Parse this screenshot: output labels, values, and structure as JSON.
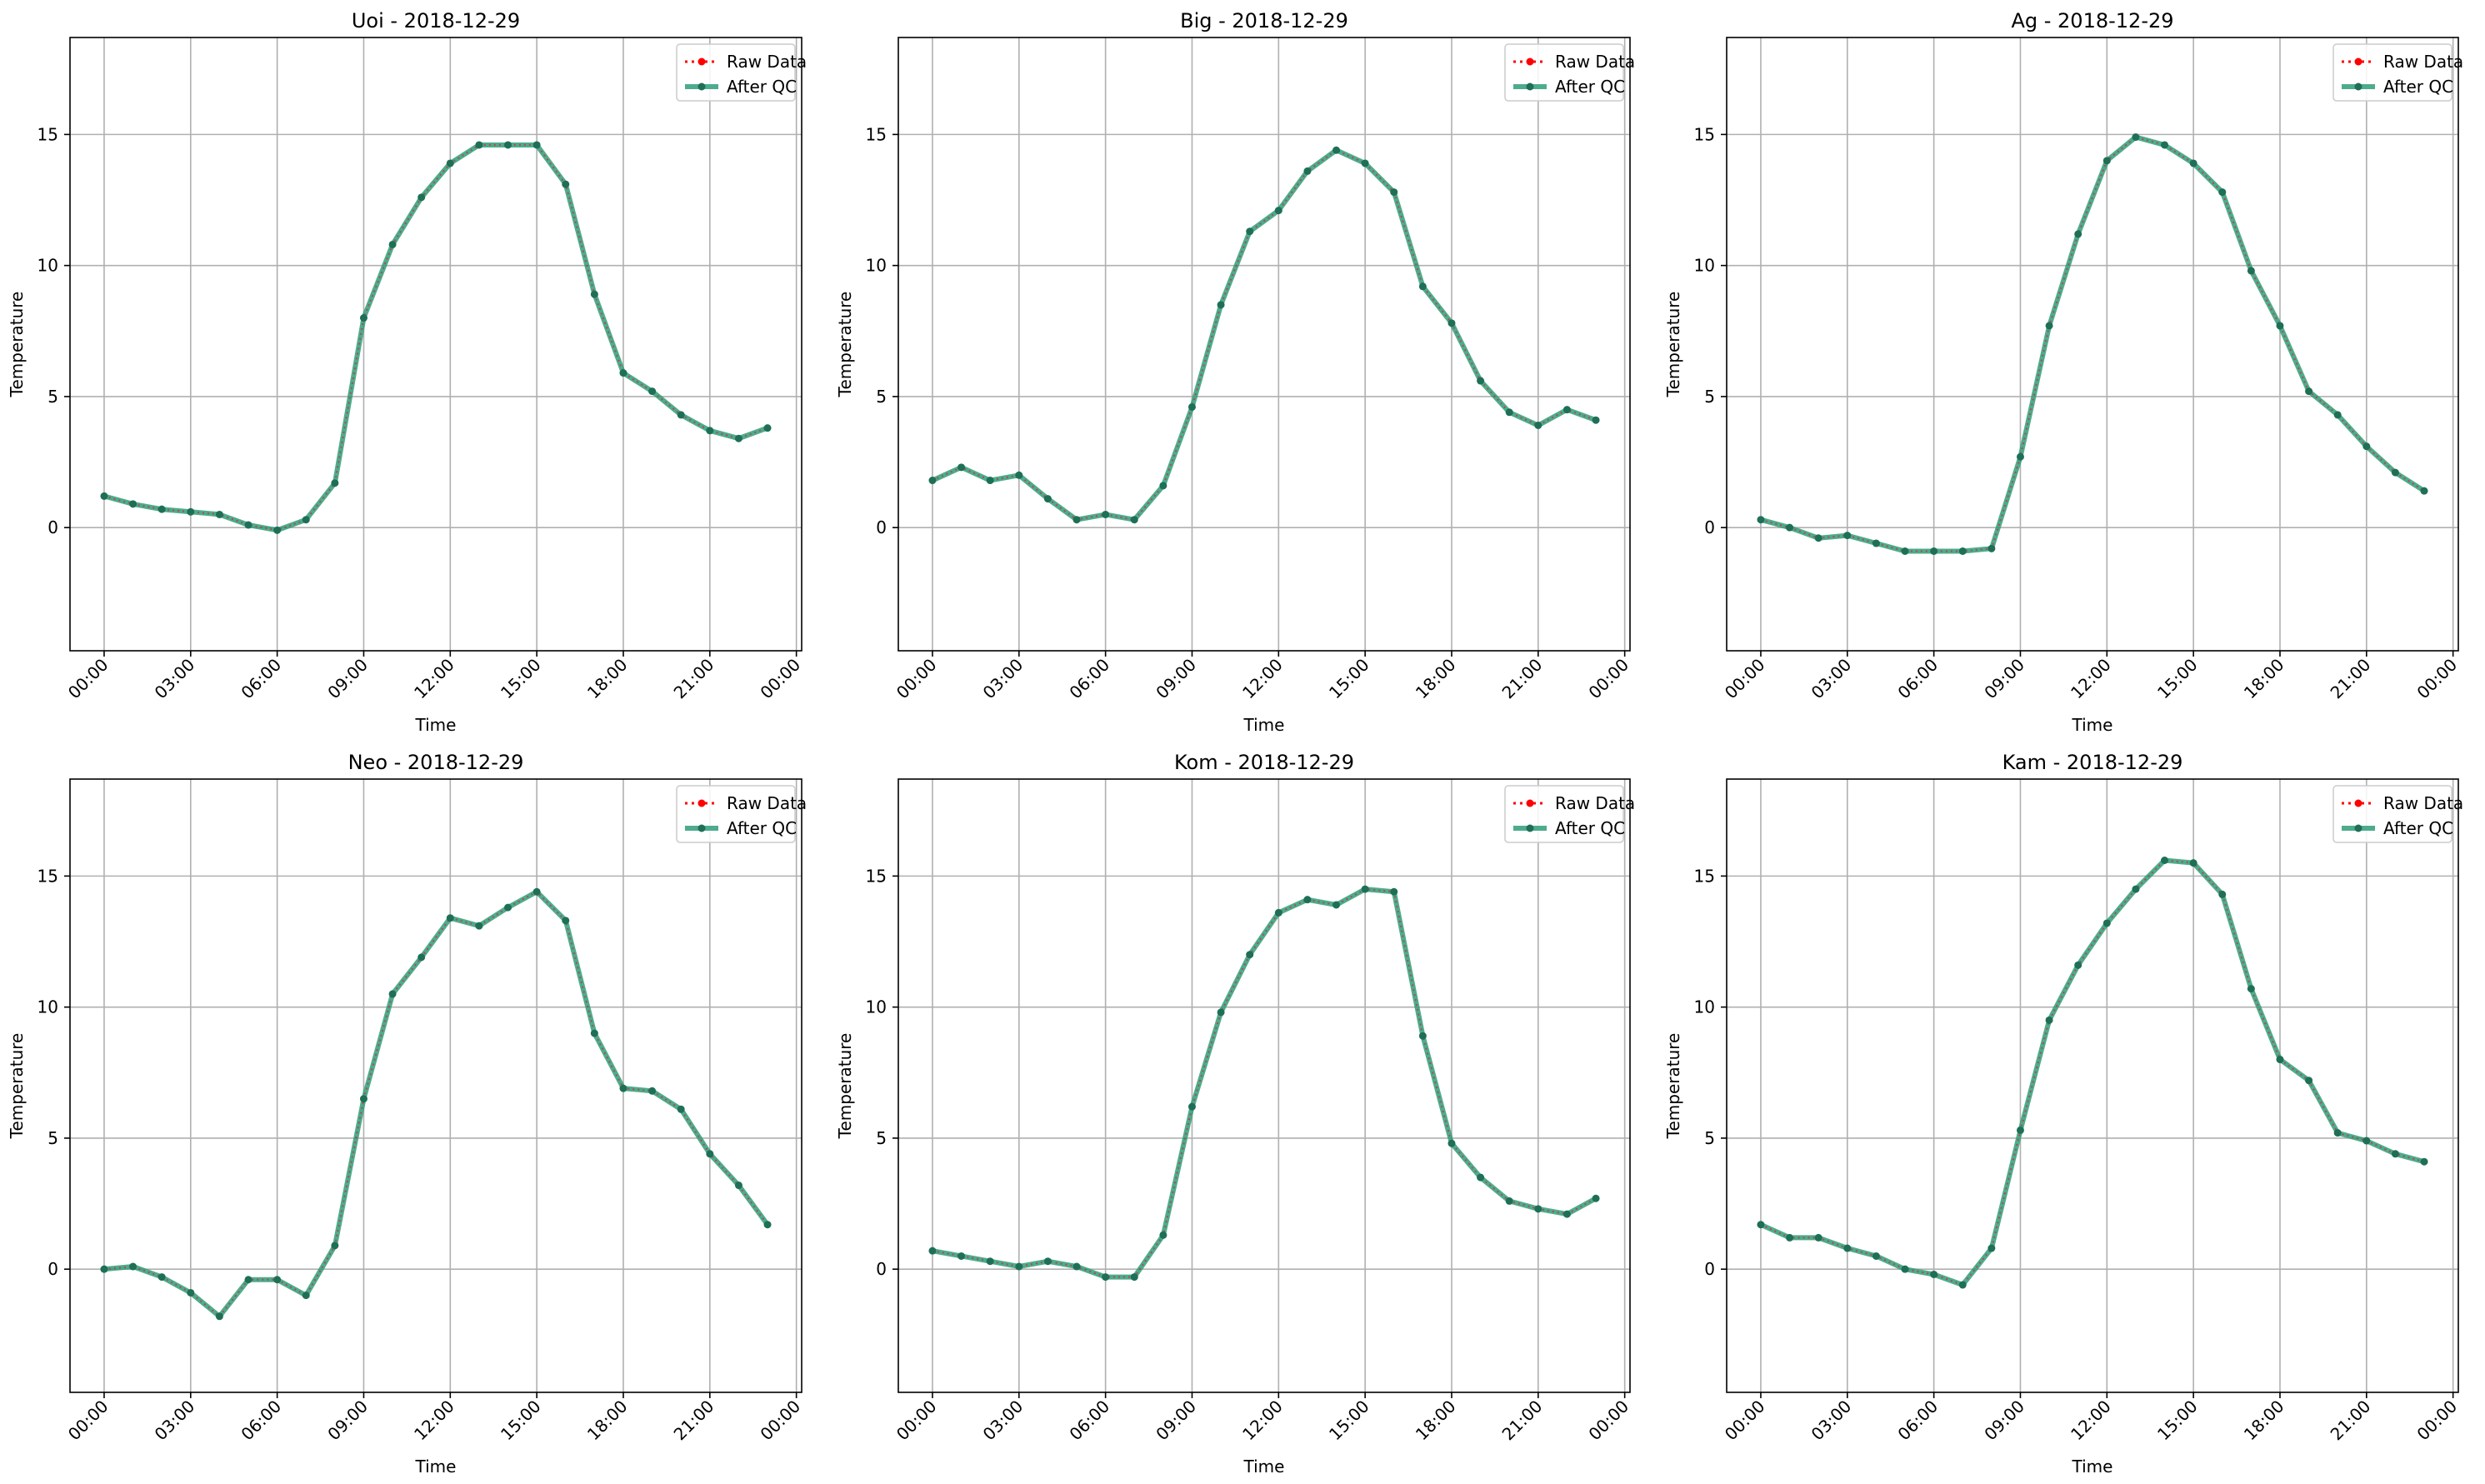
{
  "legend": {
    "raw_label": "Raw Data",
    "qc_label": "After QC"
  },
  "colors": {
    "raw": "#ff0000",
    "qc": "#2e9e7a",
    "qc_marker": "#1f6f57",
    "grid": "#b0b0b0",
    "axes": "#000000"
  },
  "chart_data": [
    {
      "type": "line",
      "title": "Uoi - 2018-12-29",
      "xlabel": "Time",
      "ylabel": "Temperature",
      "xticks": [
        "00:00",
        "03:00",
        "06:00",
        "09:00",
        "12:00",
        "15:00",
        "18:00",
        "21:00",
        "00:00"
      ],
      "yticks": [
        0,
        5,
        10,
        15
      ],
      "ylim": [
        -4.7,
        18.7
      ],
      "xlim": [
        "2018-12-28 22:49",
        "2018-12-30 00:11"
      ],
      "grid": true,
      "legend_position": "top-right",
      "x": [
        "00:00",
        "01:00",
        "02:00",
        "03:00",
        "04:00",
        "05:00",
        "06:00",
        "07:00",
        "08:00",
        "09:00",
        "10:00",
        "11:00",
        "12:00",
        "13:00",
        "14:00",
        "15:00",
        "16:00",
        "17:00",
        "18:00",
        "19:00",
        "20:00",
        "21:00",
        "22:00",
        "23:00"
      ],
      "series": [
        {
          "name": "Raw Data",
          "values": [
            1.2,
            0.9,
            0.7,
            0.6,
            0.5,
            0.1,
            -0.1,
            0.3,
            1.7,
            8.0,
            10.8,
            12.6,
            13.9,
            14.6,
            14.6,
            14.6,
            13.1,
            8.9,
            5.9,
            5.2,
            4.3,
            3.7,
            3.4,
            3.8
          ]
        },
        {
          "name": "After QC",
          "values": [
            1.2,
            0.9,
            0.7,
            0.6,
            0.5,
            0.1,
            -0.1,
            0.3,
            1.7,
            8.0,
            10.8,
            12.6,
            13.9,
            14.6,
            14.6,
            14.6,
            13.1,
            8.9,
            5.9,
            5.2,
            4.3,
            3.7,
            3.4,
            3.8
          ]
        }
      ]
    },
    {
      "type": "line",
      "title": "Big - 2018-12-29",
      "xlabel": "Time",
      "ylabel": "Temperature",
      "xticks": [
        "00:00",
        "03:00",
        "06:00",
        "09:00",
        "12:00",
        "15:00",
        "18:00",
        "21:00",
        "00:00"
      ],
      "yticks": [
        0,
        5,
        10,
        15
      ],
      "ylim": [
        -4.7,
        18.7
      ],
      "xlim": [
        "2018-12-28 22:49",
        "2018-12-30 00:11"
      ],
      "grid": true,
      "legend_position": "top-right",
      "x": [
        "00:00",
        "01:00",
        "02:00",
        "03:00",
        "04:00",
        "05:00",
        "06:00",
        "07:00",
        "08:00",
        "09:00",
        "10:00",
        "11:00",
        "12:00",
        "13:00",
        "14:00",
        "15:00",
        "16:00",
        "17:00",
        "18:00",
        "19:00",
        "20:00",
        "21:00",
        "22:00",
        "23:00"
      ],
      "series": [
        {
          "name": "Raw Data",
          "values": [
            1.8,
            2.3,
            1.8,
            2.0,
            1.1,
            0.3,
            0.5,
            0.3,
            1.6,
            4.6,
            8.5,
            11.3,
            12.1,
            13.6,
            14.4,
            13.9,
            12.8,
            9.2,
            7.8,
            5.6,
            4.4,
            3.9,
            4.5,
            4.1
          ]
        },
        {
          "name": "After QC",
          "values": [
            1.8,
            2.3,
            1.8,
            2.0,
            1.1,
            0.3,
            0.5,
            0.3,
            1.6,
            4.6,
            8.5,
            11.3,
            12.1,
            13.6,
            14.4,
            13.9,
            12.8,
            9.2,
            7.8,
            5.6,
            4.4,
            3.9,
            4.5,
            4.1
          ]
        }
      ]
    },
    {
      "type": "line",
      "title": "Ag - 2018-12-29",
      "xlabel": "Time",
      "ylabel": "Temperature",
      "xticks": [
        "00:00",
        "03:00",
        "06:00",
        "09:00",
        "12:00",
        "15:00",
        "18:00",
        "21:00",
        "00:00"
      ],
      "yticks": [
        0,
        5,
        10,
        15
      ],
      "ylim": [
        -4.7,
        18.7
      ],
      "xlim": [
        "2018-12-28 22:49",
        "2018-12-30 00:11"
      ],
      "grid": true,
      "legend_position": "top-right",
      "x": [
        "00:00",
        "01:00",
        "02:00",
        "03:00",
        "04:00",
        "05:00",
        "06:00",
        "07:00",
        "08:00",
        "09:00",
        "10:00",
        "11:00",
        "12:00",
        "13:00",
        "14:00",
        "15:00",
        "16:00",
        "17:00",
        "18:00",
        "19:00",
        "20:00",
        "21:00",
        "22:00",
        "23:00"
      ],
      "series": [
        {
          "name": "Raw Data",
          "values": [
            0.3,
            0.0,
            -0.4,
            -0.3,
            -0.6,
            -0.9,
            -0.9,
            -0.9,
            -0.8,
            2.7,
            7.7,
            11.2,
            14.0,
            14.9,
            14.6,
            13.9,
            12.8,
            9.8,
            7.7,
            5.2,
            4.3,
            3.1,
            2.1,
            1.4
          ]
        },
        {
          "name": "After QC",
          "values": [
            0.3,
            0.0,
            -0.4,
            -0.3,
            -0.6,
            -0.9,
            -0.9,
            -0.9,
            -0.8,
            2.7,
            7.7,
            11.2,
            14.0,
            14.9,
            14.6,
            13.9,
            12.8,
            9.8,
            7.7,
            5.2,
            4.3,
            3.1,
            2.1,
            1.4
          ]
        }
      ]
    },
    {
      "type": "line",
      "title": "Neo - 2018-12-29",
      "xlabel": "Time",
      "ylabel": "Temperature",
      "xticks": [
        "00:00",
        "03:00",
        "06:00",
        "09:00",
        "12:00",
        "15:00",
        "18:00",
        "21:00",
        "00:00"
      ],
      "yticks": [
        0,
        5,
        10,
        15
      ],
      "ylim": [
        -4.7,
        18.7
      ],
      "xlim": [
        "2018-12-28 22:49",
        "2018-12-30 00:11"
      ],
      "grid": true,
      "legend_position": "top-right",
      "x": [
        "00:00",
        "01:00",
        "02:00",
        "03:00",
        "04:00",
        "05:00",
        "06:00",
        "07:00",
        "08:00",
        "09:00",
        "10:00",
        "11:00",
        "12:00",
        "13:00",
        "14:00",
        "15:00",
        "16:00",
        "17:00",
        "18:00",
        "19:00",
        "20:00",
        "21:00",
        "22:00",
        "23:00"
      ],
      "series": [
        {
          "name": "Raw Data",
          "values": [
            0.0,
            0.1,
            -0.3,
            -0.9,
            -1.8,
            -0.4,
            -0.4,
            -1.0,
            0.9,
            6.5,
            10.5,
            11.9,
            13.4,
            13.1,
            13.8,
            14.4,
            13.3,
            9.0,
            6.9,
            6.8,
            6.1,
            4.4,
            3.2,
            1.7
          ]
        },
        {
          "name": "After QC",
          "values": [
            0.0,
            0.1,
            -0.3,
            -0.9,
            -1.8,
            -0.4,
            -0.4,
            -1.0,
            0.9,
            6.5,
            10.5,
            11.9,
            13.4,
            13.1,
            13.8,
            14.4,
            13.3,
            9.0,
            6.9,
            6.8,
            6.1,
            4.4,
            3.2,
            1.7
          ]
        }
      ]
    },
    {
      "type": "line",
      "title": "Kom - 2018-12-29",
      "xlabel": "Time",
      "ylabel": "Temperature",
      "xticks": [
        "00:00",
        "03:00",
        "06:00",
        "09:00",
        "12:00",
        "15:00",
        "18:00",
        "21:00",
        "00:00"
      ],
      "yticks": [
        0,
        5,
        10,
        15
      ],
      "ylim": [
        -4.7,
        18.7
      ],
      "xlim": [
        "2018-12-28 22:49",
        "2018-12-30 00:11"
      ],
      "grid": true,
      "legend_position": "top-right",
      "x": [
        "00:00",
        "01:00",
        "02:00",
        "03:00",
        "04:00",
        "05:00",
        "06:00",
        "07:00",
        "08:00",
        "09:00",
        "10:00",
        "11:00",
        "12:00",
        "13:00",
        "14:00",
        "15:00",
        "16:00",
        "17:00",
        "18:00",
        "19:00",
        "20:00",
        "21:00",
        "22:00",
        "23:00"
      ],
      "series": [
        {
          "name": "Raw Data",
          "values": [
            0.7,
            0.5,
            0.3,
            0.1,
            0.3,
            0.1,
            -0.3,
            -0.3,
            1.3,
            6.2,
            9.8,
            12.0,
            13.6,
            14.1,
            13.9,
            14.5,
            14.4,
            8.9,
            4.8,
            3.5,
            2.6,
            2.3,
            2.1,
            2.7
          ]
        },
        {
          "name": "After QC",
          "values": [
            0.7,
            0.5,
            0.3,
            0.1,
            0.3,
            0.1,
            -0.3,
            -0.3,
            1.3,
            6.2,
            9.8,
            12.0,
            13.6,
            14.1,
            13.9,
            14.5,
            14.4,
            8.9,
            4.8,
            3.5,
            2.6,
            2.3,
            2.1,
            2.7
          ]
        }
      ]
    },
    {
      "type": "line",
      "title": "Kam - 2018-12-29",
      "xlabel": "Time",
      "ylabel": "Temperature",
      "xticks": [
        "00:00",
        "03:00",
        "06:00",
        "09:00",
        "12:00",
        "15:00",
        "18:00",
        "21:00",
        "00:00"
      ],
      "yticks": [
        0,
        5,
        10,
        15
      ],
      "ylim": [
        -4.7,
        18.7
      ],
      "xlim": [
        "2018-12-28 22:49",
        "2018-12-30 00:11"
      ],
      "grid": true,
      "legend_position": "top-right",
      "x": [
        "00:00",
        "01:00",
        "02:00",
        "03:00",
        "04:00",
        "05:00",
        "06:00",
        "07:00",
        "08:00",
        "09:00",
        "10:00",
        "11:00",
        "12:00",
        "13:00",
        "14:00",
        "15:00",
        "16:00",
        "17:00",
        "18:00",
        "19:00",
        "20:00",
        "21:00",
        "22:00",
        "23:00"
      ],
      "series": [
        {
          "name": "Raw Data",
          "values": [
            1.7,
            1.2,
            1.2,
            0.8,
            0.5,
            0.0,
            -0.2,
            -0.6,
            0.8,
            5.3,
            9.5,
            11.6,
            13.2,
            14.5,
            15.6,
            15.5,
            14.3,
            10.7,
            8.0,
            7.2,
            5.2,
            4.9,
            4.4,
            4.1
          ]
        },
        {
          "name": "After QC",
          "values": [
            1.7,
            1.2,
            1.2,
            0.8,
            0.5,
            0.0,
            -0.2,
            -0.6,
            0.8,
            5.3,
            9.5,
            11.6,
            13.2,
            14.5,
            15.6,
            15.5,
            14.3,
            10.7,
            8.0,
            7.2,
            5.2,
            4.9,
            4.4,
            4.1
          ]
        }
      ]
    }
  ]
}
